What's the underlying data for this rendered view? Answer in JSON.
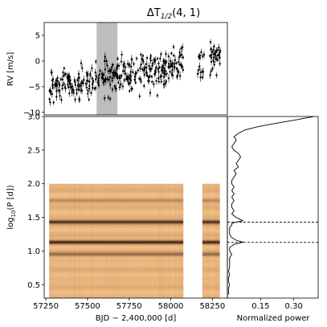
{
  "chart_data": [
    {
      "type": "scatter",
      "panel": "rv",
      "title_prefix": "ΔT",
      "title_sub": "1/2",
      "title_suffix": "(4, 1)",
      "ylabel": "RV [m/s]",
      "xlim": [
        57240,
        58340
      ],
      "ylim": [
        -10.5,
        7.5
      ],
      "yticks": [
        "-10",
        "-5",
        "0",
        "5"
      ],
      "shaded_window": [
        57555,
        57680
      ],
      "trend": {
        "start": [
          57270,
          -5.5
        ],
        "end": [
          58300,
          1.0
        ],
        "scatter": 1.6,
        "errorbar": 0.6
      },
      "gaps": [
        [
          58075,
          58155
        ],
        [
          58200,
          58230
        ]
      ],
      "n_points": 420
    },
    {
      "type": "heatmap",
      "panel": "periodogram",
      "xlabel": "BJD − 2,400,000 [d]",
      "ylabel_prefix": "log",
      "ylabel_sub": "10",
      "ylabel_suffix": "(P [d])",
      "xlim": [
        57240,
        58340
      ],
      "ylim": [
        0.3,
        3.0
      ],
      "xticks": [
        "57250",
        "57500",
        "57750",
        "58000",
        "58250"
      ],
      "yticks": [
        "0.5",
        "1.0",
        "1.5",
        "2.0",
        "2.5",
        "3.0"
      ],
      "data_blocks": [
        [
          57270,
          58075,
          2.0
        ],
        [
          58190,
          58295,
          2.0
        ]
      ],
      "bands": [
        {
          "logP": 1.43,
          "strength": 0.85
        },
        {
          "logP": 1.13,
          "strength": 0.9
        },
        {
          "logP": 0.95,
          "strength": 0.45
        },
        {
          "logP": 1.75,
          "strength": 0.25
        }
      ],
      "colors": {
        "low": "#f6c187",
        "high": "#2a0f05"
      }
    },
    {
      "type": "line",
      "panel": "power",
      "xlabel": "Normalized power",
      "xlim": [
        0,
        0.41
      ],
      "xticks": [
        "0.15",
        "0.30"
      ],
      "hlines_logP": [
        1.43,
        1.13
      ],
      "profile_logP": [
        3.0,
        2.95,
        2.9,
        2.85,
        2.8,
        2.75,
        2.7,
        2.65,
        2.6,
        2.55,
        2.5,
        2.45,
        2.4,
        2.35,
        2.3,
        2.25,
        2.2,
        2.15,
        2.1,
        2.05,
        2.0,
        1.95,
        1.9,
        1.85,
        1.8,
        1.75,
        1.7,
        1.65,
        1.6,
        1.55,
        1.5,
        1.45,
        1.43,
        1.41,
        1.38,
        1.35,
        1.3,
        1.25,
        1.2,
        1.16,
        1.13,
        1.1,
        1.05,
        1.0,
        0.95,
        0.9,
        0.85,
        0.8,
        0.75,
        0.7,
        0.65,
        0.6,
        0.55,
        0.5,
        0.45,
        0.4,
        0.35
      ],
      "profile_power": [
        0.39,
        0.31,
        0.22,
        0.14,
        0.08,
        0.05,
        0.03,
        0.04,
        0.03,
        0.02,
        0.03,
        0.05,
        0.06,
        0.05,
        0.04,
        0.05,
        0.03,
        0.04,
        0.03,
        0.02,
        0.02,
        0.03,
        0.02,
        0.03,
        0.02,
        0.03,
        0.02,
        0.02,
        0.03,
        0.02,
        0.04,
        0.07,
        0.04,
        0.02,
        0.02,
        0.01,
        0.01,
        0.01,
        0.02,
        0.04,
        0.07,
        0.03,
        0.01,
        0.01,
        0.02,
        0.01,
        0.01,
        0.01,
        0.01,
        0.005,
        0.01,
        0.005,
        0.005,
        0.01,
        0.005,
        0.005,
        0.005
      ]
    }
  ]
}
